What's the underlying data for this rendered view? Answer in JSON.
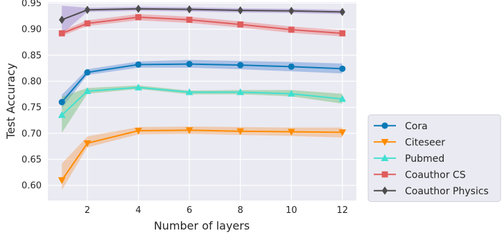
{
  "chart_data": {
    "type": "line",
    "xlabel": "Number of layers",
    "ylabel": "Test Accuracy",
    "x": [
      1,
      2,
      4,
      6,
      8,
      10,
      12
    ],
    "xticks": [
      2,
      4,
      6,
      8,
      10,
      12
    ],
    "xlim": [
      0.45,
      12.55
    ],
    "yticks": [
      0.6,
      0.65,
      0.7,
      0.75,
      0.8,
      0.85,
      0.9,
      0.95
    ],
    "ylim": [
      0.571,
      0.952
    ],
    "grid": true,
    "legend_position": "outside-right-bottom",
    "background": "#eaeaf2",
    "series": [
      {
        "name": "Cora",
        "marker": "circle",
        "color": "#0a7ab8",
        "band_color": "#5b8ed6",
        "values": [
          0.76,
          0.817,
          0.832,
          0.833,
          0.831,
          0.828,
          0.824
        ],
        "lower": [
          0.748,
          0.812,
          0.826,
          0.826,
          0.823,
          0.819,
          0.815
        ],
        "upper": [
          0.774,
          0.823,
          0.838,
          0.841,
          0.839,
          0.837,
          0.834
        ]
      },
      {
        "name": "Citeseer",
        "marker": "triangle-down",
        "color": "#ff8c00",
        "band_color": "#f4a460",
        "values": [
          0.61,
          0.681,
          0.705,
          0.706,
          0.704,
          0.703,
          0.702
        ],
        "lower": [
          0.591,
          0.673,
          0.698,
          0.699,
          0.697,
          0.695,
          0.692
        ],
        "upper": [
          0.642,
          0.694,
          0.712,
          0.713,
          0.712,
          0.711,
          0.711
        ]
      },
      {
        "name": "Pubmed",
        "marker": "triangle-up",
        "color": "#40e0d0",
        "band_color": "#6fbf73",
        "values": [
          0.735,
          0.781,
          0.788,
          0.779,
          0.779,
          0.776,
          0.766
        ],
        "lower": [
          0.701,
          0.776,
          0.785,
          0.775,
          0.775,
          0.771,
          0.757
        ],
        "upper": [
          0.77,
          0.787,
          0.792,
          0.782,
          0.783,
          0.783,
          0.776
        ]
      },
      {
        "name": "Coauthor CS",
        "marker": "square",
        "color": "#e05d5d",
        "band_color": "#e97b7b",
        "values": [
          0.892,
          0.911,
          0.923,
          0.918,
          0.909,
          0.899,
          0.892
        ],
        "lower": [
          0.887,
          0.906,
          0.917,
          0.912,
          0.903,
          0.893,
          0.886
        ],
        "upper": [
          0.897,
          0.917,
          0.929,
          0.924,
          0.915,
          0.905,
          0.898
        ]
      },
      {
        "name": "Coauthor Physics",
        "marker": "diamond",
        "color": "#4d4d4d",
        "band_color": "#9b7fc9",
        "values": [
          0.918,
          0.937,
          0.939,
          0.938,
          0.936,
          0.935,
          0.933
        ],
        "lower": [
          0.891,
          0.933,
          0.935,
          0.934,
          0.932,
          0.931,
          0.929
        ],
        "upper": [
          0.945,
          0.941,
          0.943,
          0.942,
          0.94,
          0.939,
          0.937
        ]
      }
    ]
  }
}
